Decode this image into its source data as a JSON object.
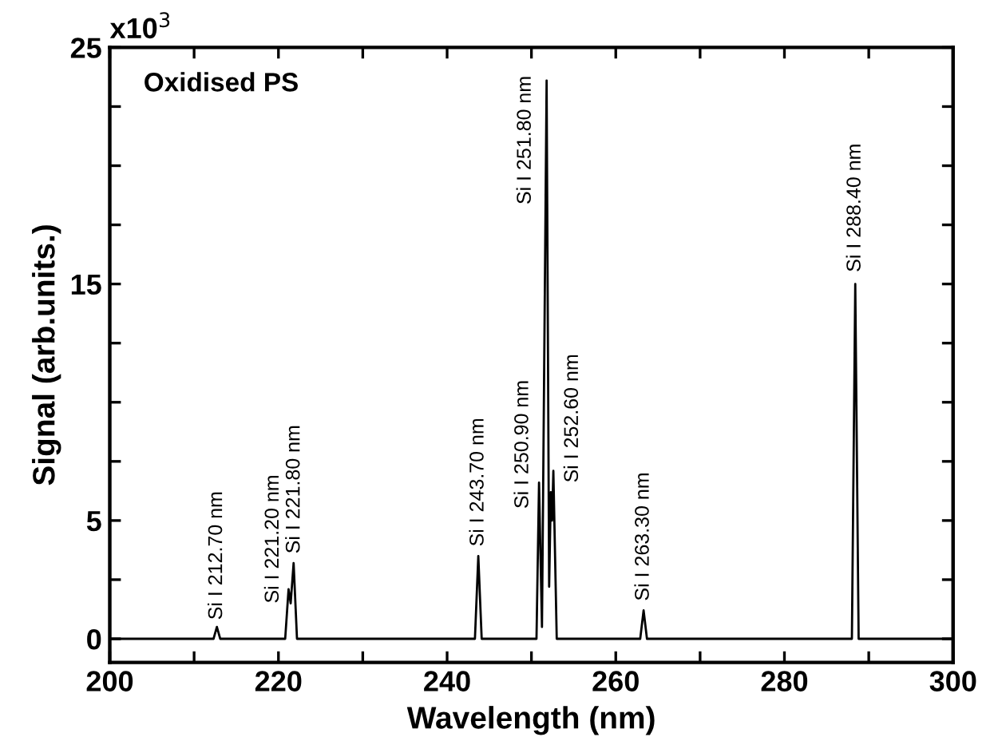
{
  "chart_data": {
    "type": "line",
    "xlabel": "Wavelength (nm)",
    "ylabel": "Signal (arb.units.)",
    "x": [
      200,
      212.3,
      212.7,
      213.1,
      220.8,
      221.2,
      221.45,
      221.8,
      222.2,
      243.3,
      243.7,
      244.1,
      250.6,
      250.9,
      251.25,
      251.8,
      252.1,
      252.3,
      252.45,
      252.6,
      253.0,
      262.9,
      263.3,
      263.7,
      288.0,
      288.4,
      288.8,
      300
    ],
    "series": [
      {
        "color": "#000000",
        "values": [
          0,
          0,
          0.5,
          0,
          0,
          2.1,
          1.5,
          3.2,
          0,
          0,
          3.5,
          0,
          0,
          6.6,
          0.5,
          23.6,
          2.2,
          6.2,
          5.0,
          7.1,
          0,
          0,
          1.2,
          0,
          0,
          15.0,
          0,
          0
        ]
      }
    ],
    "xlim": [
      200,
      300
    ],
    "xticks": [
      200,
      {
        "value": 210,
        "label": null
      },
      220,
      {
        "value": 230,
        "label": null
      },
      240,
      {
        "value": 250,
        "label": null
      },
      260,
      {
        "value": 270,
        "label": null
      },
      280,
      {
        "value": 290,
        "label": null
      },
      300
    ],
    "ylim": [
      -1,
      25
    ],
    "yticks": [
      0,
      {
        "value": 2.5,
        "label": null
      },
      5,
      {
        "value": 7.5,
        "label": null
      },
      {
        "value": 10,
        "label": null
      },
      {
        "value": 12.5,
        "label": null
      },
      15,
      {
        "value": 17.5,
        "label": null
      },
      {
        "value": 20,
        "label": null
      },
      {
        "value": 22.5,
        "label": null
      },
      25
    ],
    "annotations": [
      "x10$^{3}$",
      "Oxidised PS",
      {
        "text": "Si I 212.70 nm",
        "x": 212.7,
        "y": 0.5
      },
      {
        "text": "Si I 221.20 nm",
        "x": 221.2,
        "y": 2.1
      },
      {
        "text": "Si I 221.80 nm",
        "x": 221.8,
        "y": 3.2
      },
      {
        "text": "Si I 243.70 nm",
        "x": 243.7,
        "y": 3.5
      },
      {
        "text": "Si I 250.90 nm",
        "x": 250.9,
        "y": 6.6
      },
      {
        "text": "Si I 251.80 nm",
        "x": 251.8,
        "y": 23.6
      },
      {
        "text": "Si I 252.60 nm",
        "x": 252.6,
        "y": 7.1
      },
      {
        "text": "Si I 263.30 nm",
        "x": 263.3,
        "y": 1.2
      },
      {
        "text": "Si I 288.40 nm",
        "x": 288.4,
        "y": 15.0
      }
    ],
    "grid": false,
    "legend": false,
    "marker": "none",
    "line_style": "solid"
  }
}
